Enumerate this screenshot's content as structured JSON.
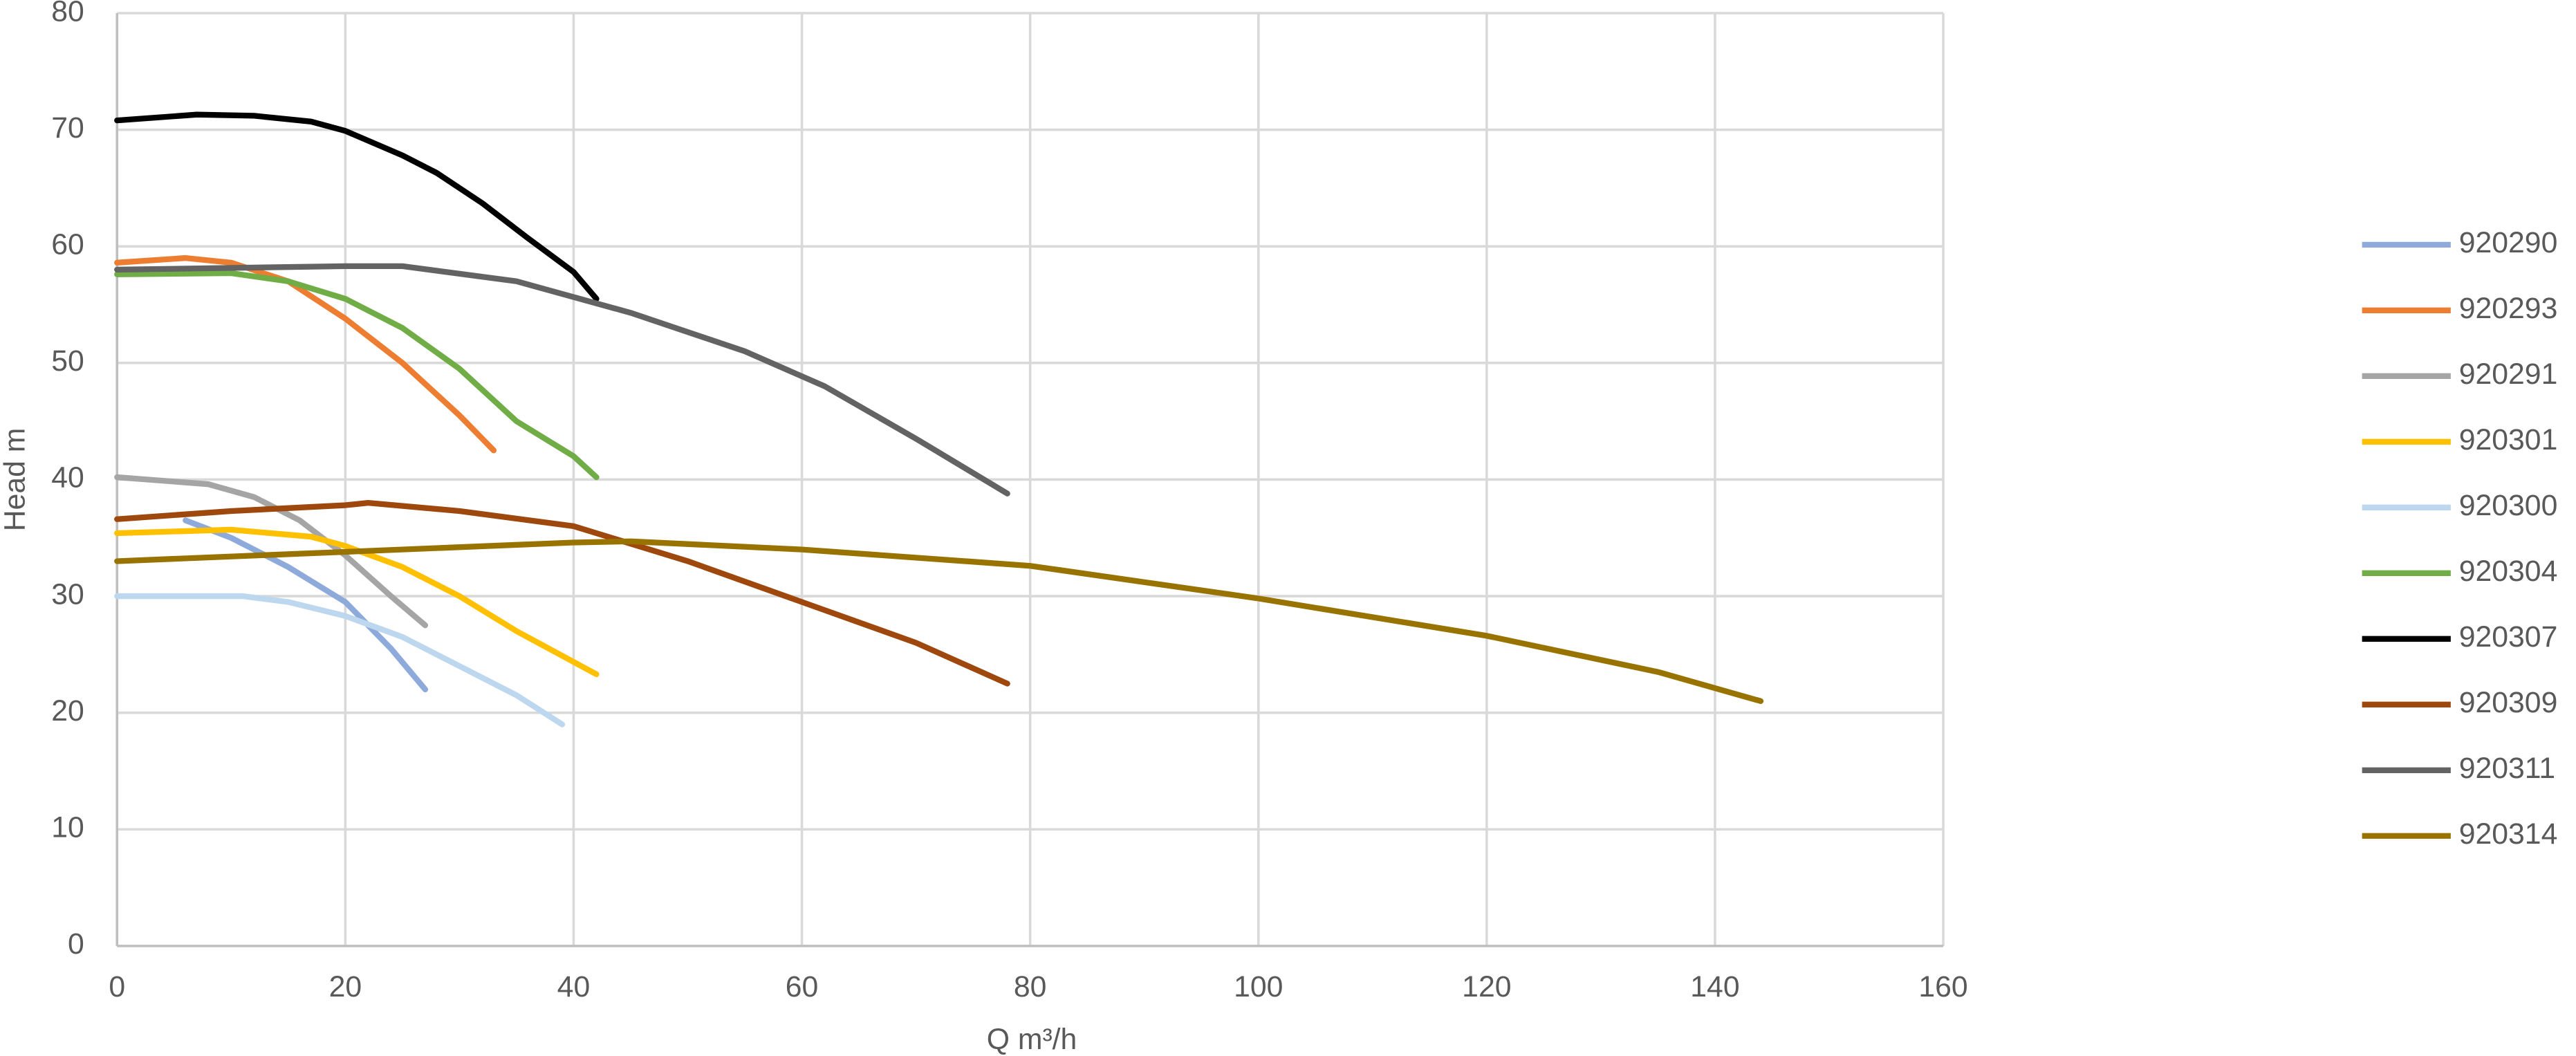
{
  "chart_data": {
    "type": "line",
    "xlabel": "Q m³/h",
    "ylabel": "Head m",
    "xlim": [
      0,
      160
    ],
    "xticks": [
      0,
      20,
      40,
      60,
      80,
      100,
      120,
      140,
      160
    ],
    "ylim": [
      0,
      80
    ],
    "yticks": [
      0,
      10,
      20,
      30,
      40,
      50,
      60,
      70,
      80
    ],
    "grid": true,
    "legend": "right",
    "series": [
      {
        "name": "920290",
        "color": "#8eaadb",
        "x": [
          6,
          10,
          15,
          20,
          24,
          27
        ],
        "values": [
          36.5,
          35,
          32.5,
          29.5,
          25.5,
          22
        ]
      },
      {
        "name": "920293",
        "color": "#ed7d31",
        "x": [
          0,
          6,
          10,
          15,
          20,
          25,
          30,
          33
        ],
        "values": [
          58.6,
          59,
          58.6,
          57,
          53.8,
          50,
          45.5,
          42.5
        ]
      },
      {
        "name": "920291",
        "color": "#a5a5a5",
        "x": [
          0,
          8,
          12,
          16,
          20,
          24,
          27
        ],
        "values": [
          40.2,
          39.6,
          38.5,
          36.5,
          33.5,
          30,
          27.5
        ]
      },
      {
        "name": "920301",
        "color": "#ffc000",
        "x": [
          0,
          10,
          17,
          20,
          25,
          30,
          35,
          42
        ],
        "values": [
          35.4,
          35.7,
          35.1,
          34.3,
          32.5,
          30,
          27,
          23.3
        ]
      },
      {
        "name": "920300",
        "color": "#bdd7ee",
        "x": [
          0,
          11,
          15,
          20,
          25,
          30,
          35,
          39
        ],
        "values": [
          30,
          30,
          29.5,
          28.3,
          26.5,
          24,
          21.5,
          19
        ]
      },
      {
        "name": "920304",
        "color": "#70ad47",
        "x": [
          0,
          10,
          15,
          20,
          25,
          30,
          35,
          40,
          42
        ],
        "values": [
          57.6,
          57.7,
          57,
          55.5,
          53,
          49.5,
          45,
          42,
          40.2
        ]
      },
      {
        "name": "920307",
        "color": "#000000",
        "x": [
          0,
          7,
          12,
          17,
          20,
          25,
          28,
          32,
          36,
          40,
          42
        ],
        "values": [
          70.8,
          71.3,
          71.2,
          70.7,
          69.9,
          67.8,
          66.3,
          63.7,
          60.7,
          57.8,
          55.5
        ]
      },
      {
        "name": "920309",
        "color": "#9e480e",
        "x": [
          0,
          10,
          20,
          22,
          30,
          40,
          50,
          60,
          70,
          78
        ],
        "values": [
          36.6,
          37.3,
          37.8,
          38,
          37.3,
          36,
          33,
          29.5,
          26,
          22.5
        ]
      },
      {
        "name": "920311",
        "color": "#636363",
        "x": [
          0,
          20,
          25,
          35,
          45,
          55,
          62,
          70,
          78
        ],
        "values": [
          58,
          58.3,
          58.3,
          57,
          54.3,
          51,
          48,
          43.5,
          38.8
        ]
      },
      {
        "name": "920314",
        "color": "#997300",
        "x": [
          0,
          20,
          40,
          45,
          60,
          80,
          100,
          120,
          135,
          144
        ],
        "values": [
          33,
          33.8,
          34.6,
          34.7,
          34,
          32.6,
          29.8,
          26.6,
          23.5,
          21
        ]
      }
    ]
  }
}
